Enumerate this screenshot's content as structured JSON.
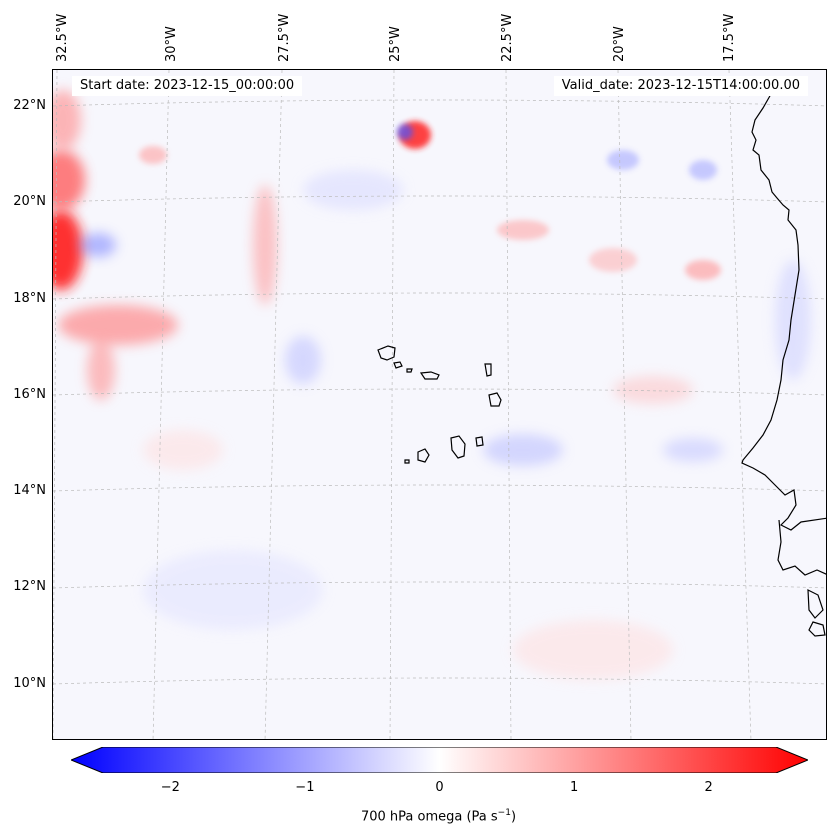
{
  "map": {
    "start_date": "Start date: 2023-12-15_00:00:00",
    "valid_date": "Valid_date: 2023-12-15T14:00:00.00",
    "lon_labels": [
      "32.5°W",
      "30°W",
      "27.5°W",
      "25°W",
      "22.5°W",
      "20°W",
      "17.5°W"
    ],
    "lat_labels": [
      "22°N",
      "20°N",
      "18°N",
      "16°N",
      "14°N",
      "12°N",
      "10°N"
    ],
    "background_color": "#f7f7fd",
    "coastline_color": "#000000",
    "gridline_color": "#bbbbbb"
  },
  "colorbar": {
    "ticks": [
      "−2",
      "−1",
      "0",
      "1",
      "2"
    ],
    "tick_values": [
      -2,
      -1,
      0,
      1,
      2
    ],
    "range": [
      -2.5,
      2.5
    ],
    "label_text": "700 hPa omega (Pa s",
    "label_exp": "−1",
    "label_close": ")",
    "color_negative": "#0000ff",
    "color_zero": "#ffffff",
    "color_positive": "#ff0000"
  }
}
